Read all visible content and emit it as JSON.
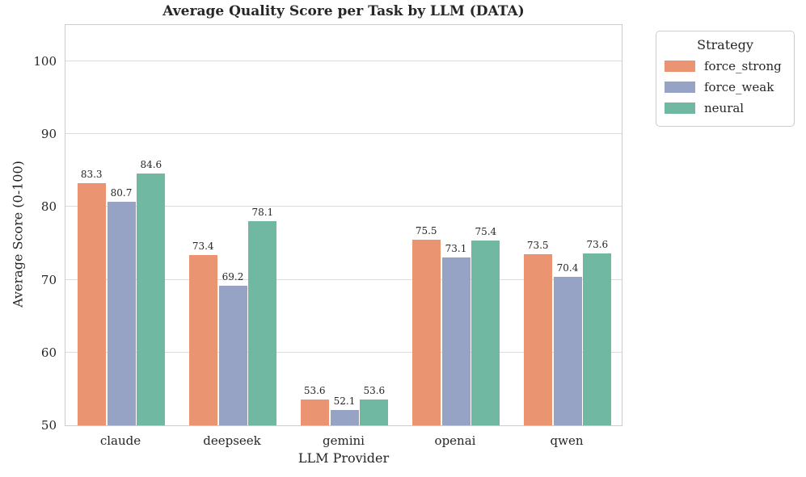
{
  "chart_data": {
    "type": "bar",
    "title": "Average Quality Score per Task by LLM (DATA)",
    "xlabel": "LLM Provider",
    "ylabel": "Average Score (0-100)",
    "categories": [
      "claude",
      "deepseek",
      "gemini",
      "openai",
      "qwen"
    ],
    "series": [
      {
        "name": "force_strong",
        "color": "#ea9472",
        "values": [
          83.3,
          73.4,
          53.6,
          75.5,
          73.5
        ]
      },
      {
        "name": "force_weak",
        "color": "#97a3c4",
        "values": [
          80.7,
          69.2,
          52.1,
          73.1,
          70.4
        ]
      },
      {
        "name": "neural",
        "color": "#71b8a3",
        "values": [
          84.6,
          78.1,
          53.6,
          75.4,
          73.6
        ]
      }
    ],
    "value_labels_decimals": 1,
    "ylim": [
      50,
      105.2
    ],
    "yticks": [
      50,
      60,
      70,
      80,
      90,
      100
    ],
    "grid": true,
    "legend": {
      "title": "Strategy",
      "position": "upper-right-outside"
    }
  },
  "colors": {
    "grid": "#dcdcdc",
    "spine": "#cccccc",
    "text": "#262626",
    "background": "#ffffff"
  }
}
